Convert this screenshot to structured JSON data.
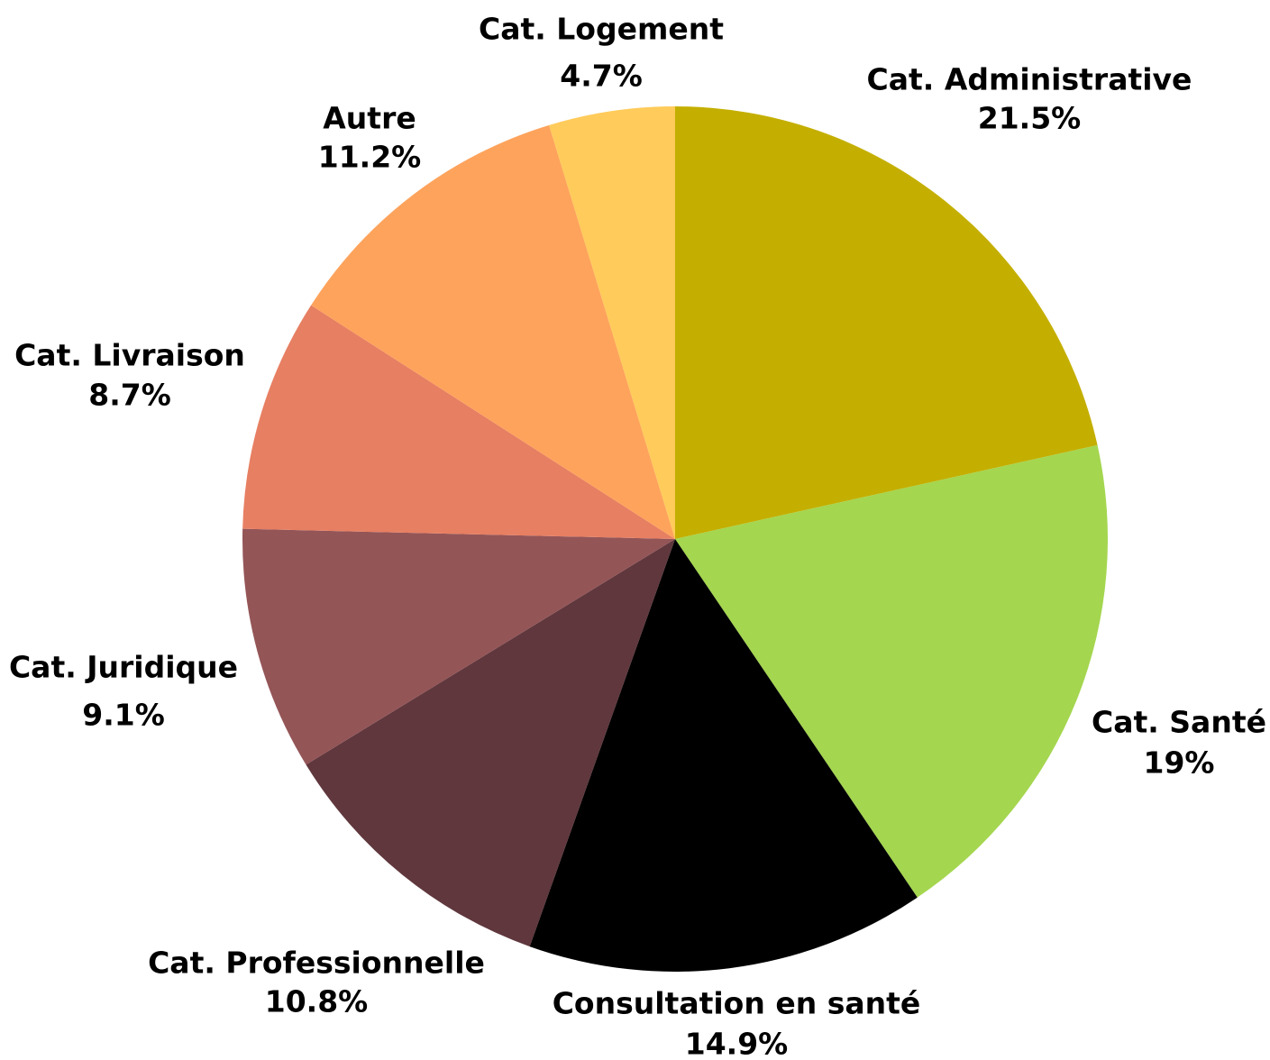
{
  "chart_data": {
    "type": "pie",
    "categories": [
      "Cat. Administrative",
      "Cat. Santé",
      "Consultation en santé",
      "Cat. Professionnelle",
      "Cat. Juridique",
      "Cat. Livraison",
      "Autre",
      "Cat. Logement"
    ],
    "values": [
      21.5,
      19,
      14.9,
      10.8,
      9.1,
      8.7,
      11.2,
      4.7
    ],
    "value_labels": [
      "21.5%",
      "19%",
      "14.9%",
      "10.8%",
      "9.1%",
      "8.7%",
      "11.2%",
      "4.7%"
    ],
    "colors": [
      "#c4af00",
      "#a4d64f",
      "#000000",
      "#5f373d",
      "#945557",
      "#e77f62",
      "#fea35c",
      "#ffcb5a"
    ]
  }
}
